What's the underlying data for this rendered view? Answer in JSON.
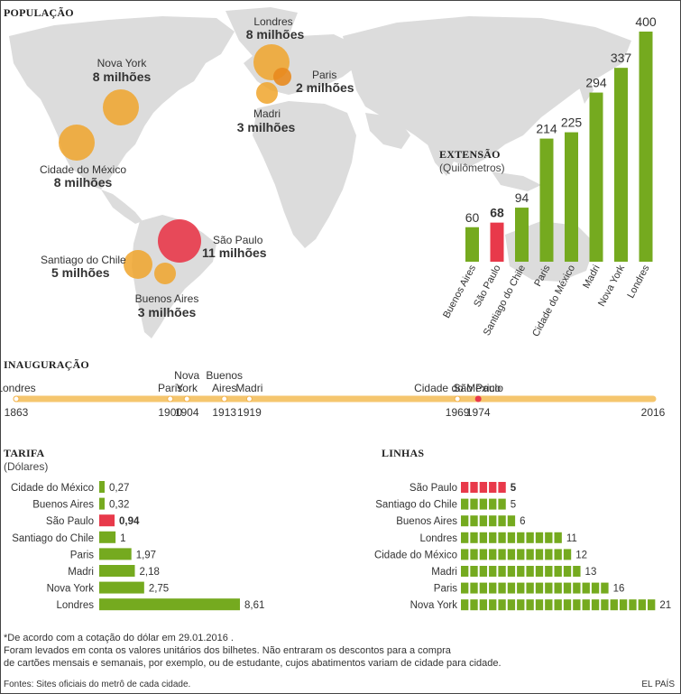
{
  "colors": {
    "green": "#75aa1f",
    "red": "#e8394a",
    "orange": "#f0a52b",
    "timeline": "#f5c66e",
    "map": "#dcdcdc"
  },
  "population": {
    "title": "POPULAÇÃO",
    "cities": [
      {
        "key": "londres",
        "name": "Londres",
        "pop": "8 milhões"
      },
      {
        "key": "paris",
        "name": "Paris",
        "pop": "2 milhões"
      },
      {
        "key": "madri",
        "name": "Madri",
        "pop": "3 milhões"
      },
      {
        "key": "nova-york",
        "name": "Nova York",
        "pop": "8 milhões"
      },
      {
        "key": "cidade-mexico",
        "name": "Cidade do México",
        "pop": "8 milhões"
      },
      {
        "key": "sao-paulo",
        "name": "São Paulo",
        "pop": "11 milhões"
      },
      {
        "key": "santiago",
        "name": "Santiago do Chile",
        "pop": "5 milhões"
      },
      {
        "key": "buenos-aires",
        "name": "Buenos Aires",
        "pop": "3 milhões"
      }
    ]
  },
  "chart_data": [
    {
      "id": "extensao",
      "type": "bar",
      "title": "EXTENSÃO",
      "subtitle": "(Quilômetros)",
      "categories": [
        "Buenos Aires",
        "São Paulo",
        "Santiago do Chile",
        "Paris",
        "Cidade do México",
        "Madri",
        "Nova York",
        "Londres"
      ],
      "values": [
        60,
        68,
        94,
        214,
        225,
        294,
        337,
        400
      ],
      "highlight": "São Paulo",
      "ylim": [
        0,
        400
      ]
    },
    {
      "id": "inauguracao",
      "type": "timeline",
      "title": "INAUGURAÇÃO",
      "events": [
        {
          "city": "Londres",
          "year": 1863
        },
        {
          "city": "Paris",
          "year": 1900
        },
        {
          "city": "Nova York",
          "year": 1904
        },
        {
          "city": "Buenos Aires",
          "year": 1913
        },
        {
          "city": "Madri",
          "year": 1919
        },
        {
          "city": "Cidade do México",
          "year": 1969
        },
        {
          "city": "São Paulo",
          "year": 1974
        }
      ],
      "end_year": 2016,
      "highlight": "São Paulo"
    },
    {
      "id": "tarifa",
      "type": "bar",
      "orientation": "horizontal",
      "title": "TARIFA",
      "subtitle": "(Dólares)",
      "categories": [
        "Cidade do México",
        "Buenos Aires",
        "São Paulo",
        "Santiago do Chile",
        "Paris",
        "Madri",
        "Nova York",
        "Londres"
      ],
      "values": [
        0.27,
        0.32,
        0.94,
        1,
        1.97,
        2.18,
        2.75,
        8.61
      ],
      "value_labels": [
        "0,27",
        "0,32",
        "0,94",
        "1",
        "1,97",
        "2,18",
        "2,75",
        "8,61"
      ],
      "highlight": "São Paulo"
    },
    {
      "id": "linhas",
      "type": "bar",
      "orientation": "horizontal",
      "title": "LINHAS",
      "categories": [
        "São Paulo",
        "Santiago do Chile",
        "Buenos Aires",
        "Londres",
        "Cidade do México",
        "Madri",
        "Paris",
        "Nova York"
      ],
      "values": [
        5,
        5,
        6,
        11,
        12,
        13,
        16,
        21
      ],
      "highlight": "São Paulo"
    }
  ],
  "footnote": {
    "line1": "*De acordo com a cotação do dólar em 29.01.2016 .",
    "line2": "Foram levados em conta os valores unitários dos bilhetes. Não entraram os descontos para a compra",
    "line3": "de cartões mensais e semanais, por exemplo, ou de estudante, cujos abatimentos variam de cidade para cidade."
  },
  "sources": "Fontes: Sites oficiais do metrô de cada cidade.",
  "brand": "EL PAÍS"
}
